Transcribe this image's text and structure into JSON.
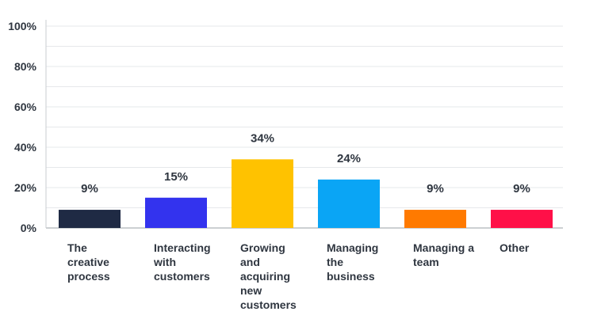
{
  "chart_data": {
    "type": "bar",
    "categories": [
      [
        "The",
        "creative",
        "process"
      ],
      [
        "Interacting",
        "with",
        "customers"
      ],
      [
        "Growing",
        "and",
        "acquiring",
        "new",
        "customers"
      ],
      [
        "Managing",
        "the",
        "business"
      ],
      [
        "Managing a",
        "team"
      ],
      [
        "Other"
      ]
    ],
    "values": [
      9,
      15,
      34,
      24,
      9,
      9
    ],
    "data_labels": [
      "9%",
      "15%",
      "34%",
      "24%",
      "9%",
      "9%"
    ],
    "colors": [
      "#1f2a44",
      "#3333ee",
      "#ffc200",
      "#0aa5f5",
      "#ff7a00",
      "#ff1048"
    ],
    "yticks": [
      "0%",
      "20%",
      "40%",
      "60%",
      "80%",
      "100%"
    ],
    "ylim": [
      0,
      100
    ],
    "grid": true
  }
}
